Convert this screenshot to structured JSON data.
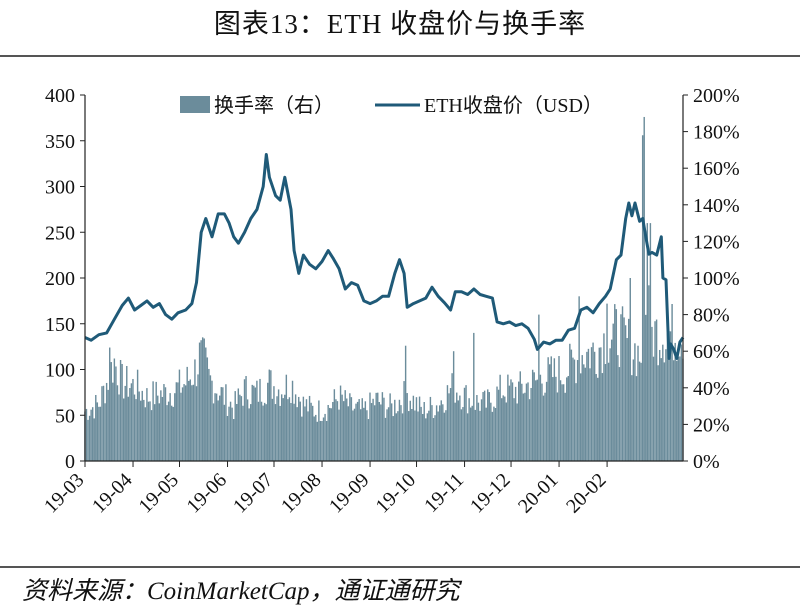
{
  "figure": {
    "title": "图表13：ETH 收盘价与换手率",
    "source": "资料来源：CoinMarketCap，通证通研究"
  },
  "chart_data": {
    "type": "bar+line",
    "legend": {
      "position": "top",
      "items": [
        "换手率（右）",
        "ETH收盘价（USD）"
      ]
    },
    "x_ticks": [
      "19-03",
      "19-04",
      "19-05",
      "19-06",
      "19-07",
      "19-08",
      "19-09",
      "19-10",
      "19-11",
      "19-12",
      "20-01",
      "20-02"
    ],
    "y_left": {
      "ticks": [
        0,
        50,
        100,
        150,
        200,
        250,
        300,
        350,
        400
      ],
      "range": [
        0,
        400
      ]
    },
    "y_right": {
      "ticks": [
        "0%",
        "20%",
        "40%",
        "60%",
        "80%",
        "100%",
        "120%",
        "140%",
        "160%",
        "180%",
        "200%"
      ],
      "range": [
        0,
        2.0
      ]
    },
    "grid": false,
    "colors": {
      "bars": "#6b8c9b",
      "line": "#1f5a78"
    },
    "series": [
      {
        "name": "换手率（右）",
        "kind": "bar",
        "axis": "right",
        "keypoints": [
          [
            "2019-03-01",
            0.28
          ],
          [
            "2019-03-10",
            0.32
          ],
          [
            "2019-03-20",
            0.56
          ],
          [
            "2019-03-25",
            0.44
          ],
          [
            "2019-04-03",
            0.42
          ],
          [
            "2019-04-10",
            0.36
          ],
          [
            "2019-04-20",
            0.38
          ],
          [
            "2019-04-28",
            0.4
          ],
          [
            "2019-05-05",
            0.44
          ],
          [
            "2019-05-12",
            0.52
          ],
          [
            "2019-05-15",
            0.62
          ],
          [
            "2019-05-20",
            0.46
          ],
          [
            "2019-05-28",
            0.38
          ],
          [
            "2019-06-05",
            0.3
          ],
          [
            "2019-06-12",
            0.4
          ],
          [
            "2019-06-20",
            0.38
          ],
          [
            "2019-06-28",
            0.44
          ],
          [
            "2019-07-05",
            0.4
          ],
          [
            "2019-07-12",
            0.44
          ],
          [
            "2019-07-20",
            0.32
          ],
          [
            "2019-07-28",
            0.28
          ],
          [
            "2019-08-05",
            0.3
          ],
          [
            "2019-08-12",
            0.36
          ],
          [
            "2019-08-20",
            0.3
          ],
          [
            "2019-08-28",
            0.28
          ],
          [
            "2019-09-05",
            0.34
          ],
          [
            "2019-09-15",
            0.3
          ],
          [
            "2019-09-25",
            0.38
          ],
          [
            "2019-10-05",
            0.28
          ],
          [
            "2019-10-15",
            0.32
          ],
          [
            "2019-10-25",
            0.42
          ],
          [
            "2019-11-05",
            0.34
          ],
          [
            "2019-11-15",
            0.32
          ],
          [
            "2019-11-25",
            0.4
          ],
          [
            "2019-12-05",
            0.4
          ],
          [
            "2019-12-15",
            0.44
          ],
          [
            "2019-12-25",
            0.48
          ],
          [
            "2020-01-05",
            0.5
          ],
          [
            "2020-01-15",
            0.6
          ],
          [
            "2020-01-25",
            0.62
          ],
          [
            "2020-02-01",
            0.7
          ],
          [
            "2020-02-08",
            0.72
          ],
          [
            "2020-02-15",
            0.66
          ],
          [
            "2020-02-22",
            0.6
          ],
          [
            "2020-02-29",
            0.72
          ]
        ],
        "spikes": [
          [
            "2019-03-17",
            0.62
          ],
          [
            "2019-05-15",
            0.66
          ],
          [
            "2019-09-24",
            0.63
          ],
          [
            "2019-10-25",
            0.6
          ],
          [
            "2019-11-07",
            0.7
          ],
          [
            "2019-12-19",
            0.8
          ],
          [
            "2020-01-14",
            0.9
          ],
          [
            "2020-02-01",
            0.86
          ],
          [
            "2020-02-16",
            1.0
          ],
          [
            "2020-02-24",
            1.78
          ],
          [
            "2020-02-25",
            1.88
          ],
          [
            "2020-02-27",
            1.3
          ],
          [
            "2020-02-28",
            0.96
          ],
          [
            "2020-02-29",
            1.3
          ]
        ]
      },
      {
        "name": "ETH收盘价（USD）",
        "kind": "line",
        "axis": "left",
        "points": [
          [
            "2019-03-01",
            135
          ],
          [
            "2019-03-05",
            132
          ],
          [
            "2019-03-10",
            138
          ],
          [
            "2019-03-15",
            140
          ],
          [
            "2019-03-20",
            155
          ],
          [
            "2019-03-25",
            170
          ],
          [
            "2019-03-29",
            178
          ],
          [
            "2019-04-02",
            165
          ],
          [
            "2019-04-06",
            170
          ],
          [
            "2019-04-10",
            175
          ],
          [
            "2019-04-14",
            168
          ],
          [
            "2019-04-18",
            172
          ],
          [
            "2019-04-22",
            160
          ],
          [
            "2019-04-26",
            155
          ],
          [
            "2019-04-30",
            162
          ],
          [
            "2019-05-05",
            165
          ],
          [
            "2019-05-09",
            172
          ],
          [
            "2019-05-12",
            195
          ],
          [
            "2019-05-15",
            250
          ],
          [
            "2019-05-18",
            265
          ],
          [
            "2019-05-22",
            245
          ],
          [
            "2019-05-26",
            270
          ],
          [
            "2019-05-30",
            270
          ],
          [
            "2019-06-02",
            260
          ],
          [
            "2019-06-05",
            245
          ],
          [
            "2019-06-08",
            238
          ],
          [
            "2019-06-12",
            250
          ],
          [
            "2019-06-16",
            265
          ],
          [
            "2019-06-20",
            275
          ],
          [
            "2019-06-24",
            300
          ],
          [
            "2019-06-26",
            335
          ],
          [
            "2019-06-28",
            310
          ],
          [
            "2019-07-02",
            290
          ],
          [
            "2019-07-05",
            285
          ],
          [
            "2019-07-08",
            310
          ],
          [
            "2019-07-12",
            275
          ],
          [
            "2019-07-14",
            230
          ],
          [
            "2019-07-17",
            205
          ],
          [
            "2019-07-20",
            225
          ],
          [
            "2019-07-24",
            215
          ],
          [
            "2019-07-28",
            210
          ],
          [
            "2019-08-01",
            218
          ],
          [
            "2019-08-05",
            230
          ],
          [
            "2019-08-08",
            222
          ],
          [
            "2019-08-12",
            210
          ],
          [
            "2019-08-16",
            188
          ],
          [
            "2019-08-20",
            195
          ],
          [
            "2019-08-24",
            192
          ],
          [
            "2019-08-28",
            175
          ],
          [
            "2019-09-01",
            172
          ],
          [
            "2019-09-05",
            175
          ],
          [
            "2019-09-09",
            180
          ],
          [
            "2019-09-13",
            180
          ],
          [
            "2019-09-17",
            205
          ],
          [
            "2019-09-20",
            220
          ],
          [
            "2019-09-23",
            205
          ],
          [
            "2019-09-25",
            168
          ],
          [
            "2019-09-29",
            172
          ],
          [
            "2019-10-03",
            175
          ],
          [
            "2019-10-07",
            178
          ],
          [
            "2019-10-11",
            190
          ],
          [
            "2019-10-15",
            180
          ],
          [
            "2019-10-19",
            173
          ],
          [
            "2019-10-23",
            165
          ],
          [
            "2019-10-26",
            185
          ],
          [
            "2019-10-30",
            185
          ],
          [
            "2019-11-03",
            182
          ],
          [
            "2019-11-07",
            188
          ],
          [
            "2019-11-11",
            182
          ],
          [
            "2019-11-15",
            180
          ],
          [
            "2019-11-19",
            178
          ],
          [
            "2019-11-22",
            152
          ],
          [
            "2019-11-26",
            150
          ],
          [
            "2019-11-30",
            152
          ],
          [
            "2019-12-04",
            148
          ],
          [
            "2019-12-08",
            150
          ],
          [
            "2019-12-12",
            145
          ],
          [
            "2019-12-16",
            133
          ],
          [
            "2019-12-18",
            122
          ],
          [
            "2019-12-22",
            130
          ],
          [
            "2019-12-26",
            128
          ],
          [
            "2019-12-30",
            132
          ],
          [
            "2020-01-03",
            132
          ],
          [
            "2020-01-07",
            143
          ],
          [
            "2020-01-11",
            145
          ],
          [
            "2020-01-15",
            165
          ],
          [
            "2020-01-19",
            168
          ],
          [
            "2020-01-23",
            162
          ],
          [
            "2020-01-27",
            172
          ],
          [
            "2020-01-31",
            180
          ],
          [
            "2020-02-03",
            188
          ],
          [
            "2020-02-07",
            220
          ],
          [
            "2020-02-10",
            225
          ],
          [
            "2020-02-13",
            265
          ],
          [
            "2020-02-15",
            282
          ],
          [
            "2020-02-17",
            268
          ],
          [
            "2020-02-19",
            282
          ],
          [
            "2020-02-22",
            262
          ],
          [
            "2020-02-24",
            265
          ],
          [
            "2020-02-26",
            245
          ],
          [
            "2020-02-28",
            226
          ],
          [
            "2020-03-01",
            228
          ],
          [
            "2020-03-04",
            225
          ],
          [
            "2020-03-07",
            245
          ],
          [
            "2020-03-08",
            200
          ],
          [
            "2020-03-10",
            198
          ],
          [
            "2020-03-12",
            112
          ],
          [
            "2020-03-13",
            128
          ],
          [
            "2020-03-15",
            122
          ],
          [
            "2020-03-17",
            112
          ],
          [
            "2020-03-19",
            130
          ],
          [
            "2020-03-21",
            135
          ]
        ]
      }
    ]
  }
}
